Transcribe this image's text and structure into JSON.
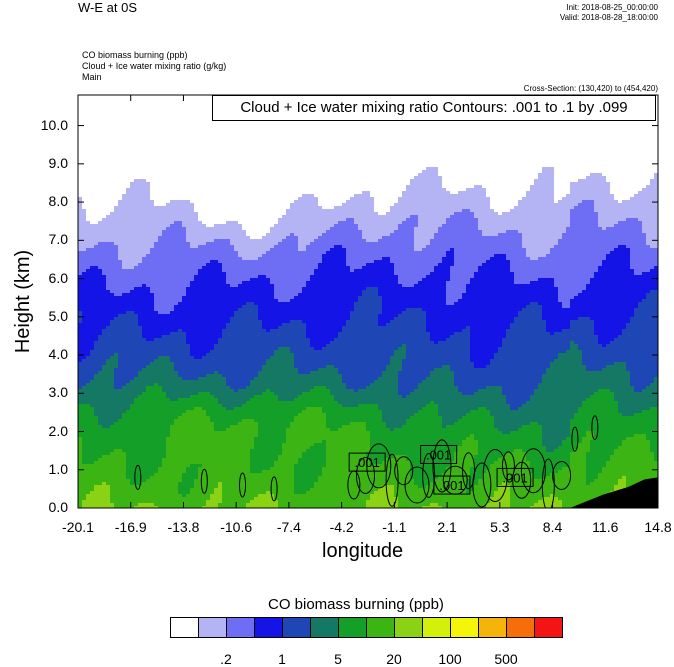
{
  "header": {
    "title": "W-E at 0S",
    "init": "Init: 2018-08-25_00:00:00",
    "valid": "Valid: 2018-08-28_18:00:00"
  },
  "subtitles": [
    "CO biomass burning   (ppb)",
    "Cloud + Ice water mixing ratio   (g/kg)",
    "Main"
  ],
  "cross_section": "Cross-Section: (130,420) to (454,420)",
  "contour_info": "Cloud + Ice water mixing ratio Contours: .001 to .1 by .099",
  "chart_data": {
    "type": "heatmap",
    "xlabel": "longitude",
    "ylabel": "Height (km)",
    "x_ticks": [
      "-20.1",
      "-16.9",
      "-13.8",
      "-10.6",
      "-7.4",
      "-4.2",
      "-1.1",
      "2.1",
      "5.3",
      "8.4",
      "11.6",
      "14.8"
    ],
    "y_ticks": [
      "0.0",
      "1.0",
      "2.0",
      "3.0",
      "4.0",
      "5.0",
      "6.0",
      "7.0",
      "8.0",
      "9.0",
      "10.0"
    ],
    "xlim": [
      -20.1,
      14.8
    ],
    "ylim": [
      0,
      10.8
    ],
    "contour_labels": [
      ".001",
      ".001",
      ".001",
      ".001"
    ],
    "colorbar": {
      "title": "CO biomass burning  (ppb)",
      "colors": [
        "#ffffff",
        "#b4b4f5",
        "#6e6ef5",
        "#1414e6",
        "#1e46b4",
        "#147864",
        "#14a028",
        "#3cb414",
        "#8cd214",
        "#d2f00a",
        "#f5f50a",
        "#f5b40a",
        "#f56e0a",
        "#f51414"
      ],
      "labels": [
        ".2",
        "1",
        "5",
        "20",
        "100",
        "500"
      ]
    }
  }
}
